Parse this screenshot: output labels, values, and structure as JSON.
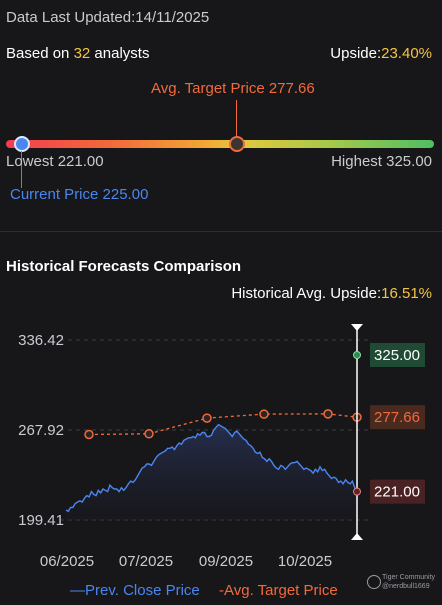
{
  "header": {
    "updated_label": "Data Last Updated:",
    "updated_value": "14/11/2025",
    "based_prefix": "Based on ",
    "analysts_count": "32",
    "based_suffix": " analysts",
    "upside_label": "Upside:",
    "upside_value": "23.40%"
  },
  "range_bar": {
    "avg_target_label": "Avg. Target Price 277.66",
    "lowest_label": "Lowest 221.00",
    "highest_label": "Highest 325.00",
    "current_label": "Current Price 225.00",
    "low": 221.0,
    "high": 325.0,
    "avg_target": 277.66,
    "current": 225.0,
    "colors": {
      "low": "#f23d4f",
      "mid": "#e4c83d",
      "high": "#4fbf63",
      "current": "#4a86f0",
      "target": "#f26a3b"
    }
  },
  "section": {
    "title": "Historical Forecasts Comparison",
    "hist_upside_label": "Historical Avg. Upside:",
    "hist_upside_value": "16.51%"
  },
  "chart_data": {
    "type": "line",
    "x_labels": [
      "06/2025",
      "07/2025",
      "09/2025",
      "10/2025"
    ],
    "y_ticks": [
      "336.42",
      "267.92",
      "199.41"
    ],
    "ylim": [
      199.41,
      336.42
    ],
    "series": [
      {
        "name": "Prev. Close Price",
        "color": "#4a86f0",
        "values": [
          207,
          206,
          209,
          209,
          212,
          213,
          214,
          213,
          216,
          218,
          217,
          221,
          219,
          218,
          222,
          220,
          223,
          222,
          221,
          226,
          224,
          223,
          223,
          221,
          224,
          222,
          224,
          227,
          229,
          228,
          230,
          233,
          236,
          239,
          240,
          242,
          242,
          241,
          244,
          247,
          249,
          250,
          251,
          252,
          254,
          254,
          255,
          253,
          256,
          258,
          257,
          260,
          261,
          262,
          262,
          263,
          262,
          265,
          264,
          266,
          266,
          263,
          263,
          264,
          268,
          270,
          272,
          271,
          270,
          269,
          267,
          265,
          263,
          266,
          267,
          265,
          263,
          261,
          260,
          257,
          256,
          254,
          251,
          250,
          251,
          247,
          246,
          244,
          246,
          244,
          241,
          239,
          238,
          241,
          240,
          238,
          240,
          242,
          243,
          243,
          244,
          242,
          240,
          238,
          239,
          238,
          237,
          235,
          238,
          236,
          240,
          237,
          238,
          235,
          233,
          231,
          232,
          231,
          228,
          229,
          227,
          230,
          228,
          227,
          229,
          224,
          221
        ]
      },
      {
        "name": "Avg. Target Price",
        "color": "#f26a3b",
        "values": [
          264.5,
          265.0,
          277.0,
          280.0,
          280.2,
          277.66
        ]
      }
    ],
    "end_labels": {
      "highest": "325.00",
      "avg": "277.66",
      "lowest": "221.00"
    },
    "legend_placement": "bottom"
  },
  "watermark": {
    "line1": "Tiger Community",
    "line2": "@nerdbull1669"
  }
}
